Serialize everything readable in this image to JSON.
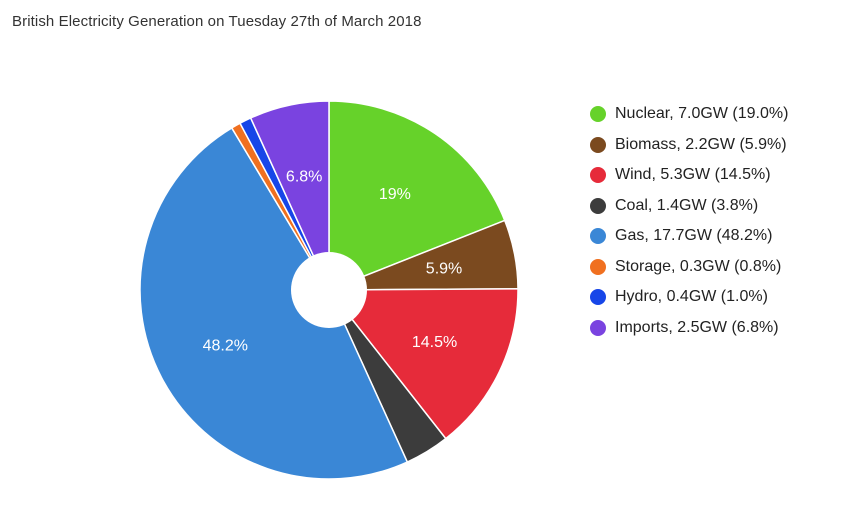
{
  "chart_data": {
    "type": "pie",
    "title": "British Electricity Generation on Tuesday 27th of March 2018",
    "slices": [
      {
        "name": "Nuclear",
        "legend": "Nuclear, 7.0GW (19.0%)",
        "value": 19.0,
        "label": "19%",
        "color": "#66d22a"
      },
      {
        "name": "Biomass",
        "legend": "Biomass, 2.2GW (5.9%)",
        "value": 5.9,
        "label": "5.9%",
        "color": "#7b4a1f"
      },
      {
        "name": "Wind",
        "legend": "Wind, 5.3GW (14.5%)",
        "value": 14.5,
        "label": "14.5%",
        "color": "#e62b3a"
      },
      {
        "name": "Coal",
        "legend": "Coal, 1.4GW (3.8%)",
        "value": 3.8,
        "label": "",
        "color": "#3c3c3c"
      },
      {
        "name": "Gas",
        "legend": "Gas, 17.7GW (48.2%)",
        "value": 48.2,
        "label": "48.2%",
        "color": "#3a87d6"
      },
      {
        "name": "Storage",
        "legend": "Storage, 0.3GW (0.8%)",
        "value": 0.8,
        "label": "",
        "color": "#f07020"
      },
      {
        "name": "Hydro",
        "legend": "Hydro, 0.4GW (1.0%)",
        "value": 1.0,
        "label": "",
        "color": "#1746e8"
      },
      {
        "name": "Imports",
        "legend": "Imports, 2.5GW (6.8%)",
        "value": 6.8,
        "label": "6.8%",
        "color": "#7a43e0"
      }
    ],
    "legend_position": "right"
  }
}
